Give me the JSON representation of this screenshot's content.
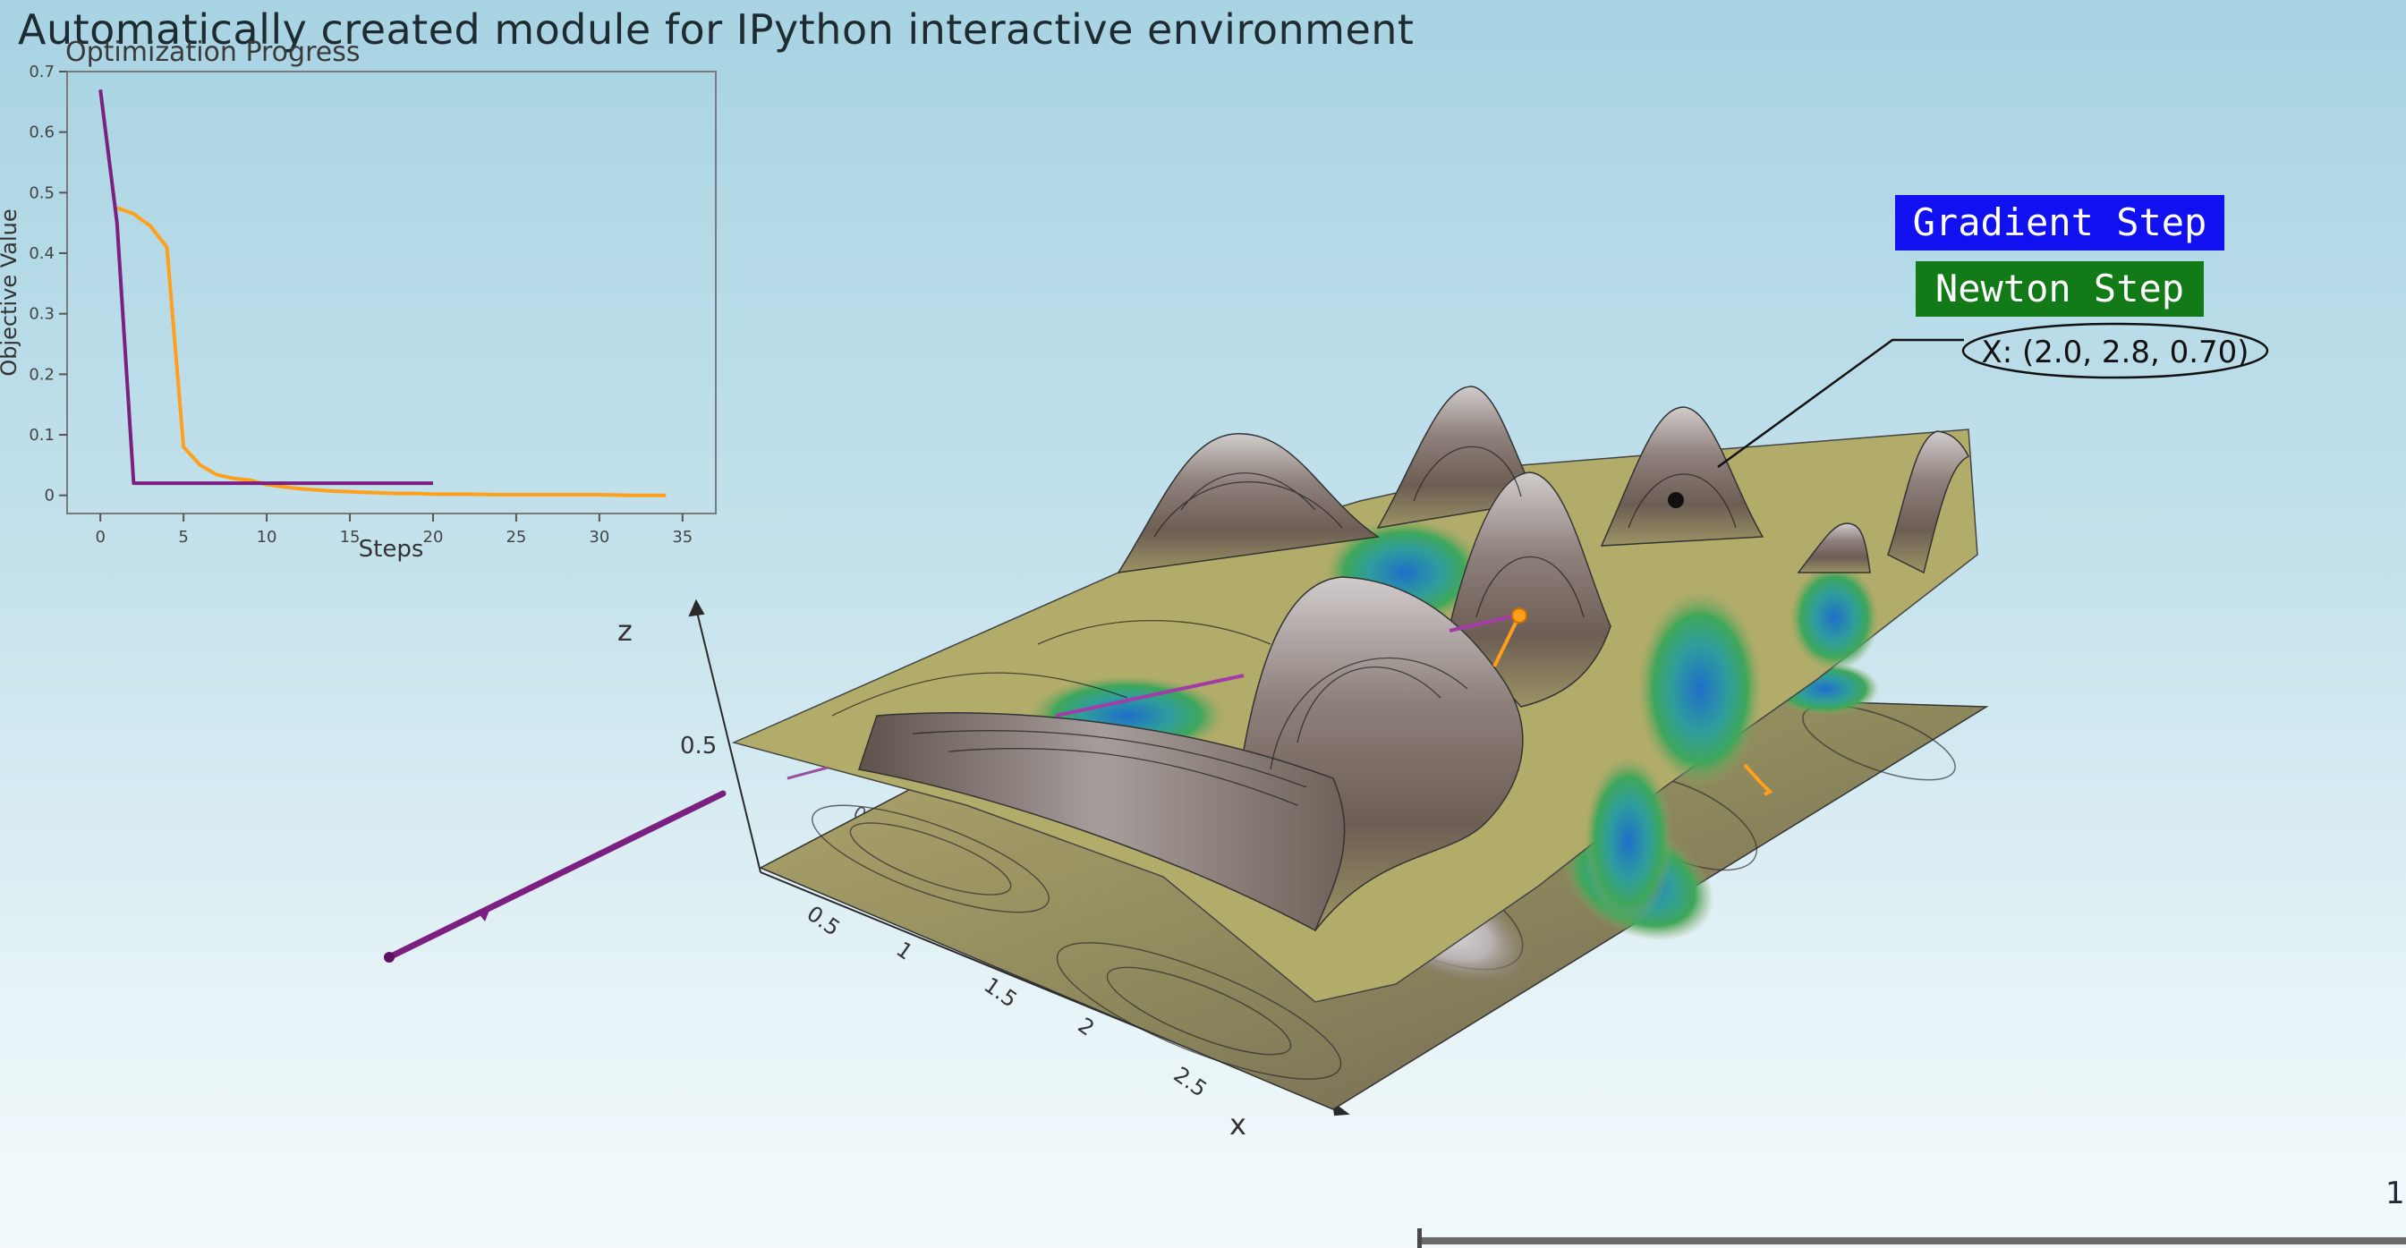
{
  "window": {
    "title": "Automatically created module for IPython interactive environment"
  },
  "colors": {
    "gradient": "#ff9f1a",
    "newton": "#7b1f80",
    "legend_gradient_bg": "#1010f0",
    "legend_newton_bg": "#127a16"
  },
  "chart_data": [
    {
      "type": "line",
      "title": "Optimization Progress",
      "xlabel": "Steps",
      "ylabel": "Objective Value",
      "xlim": [
        -2,
        37
      ],
      "ylim": [
        -0.03,
        0.7
      ],
      "xticks": [
        0,
        5,
        10,
        15,
        20,
        25,
        30,
        35
      ],
      "yticks": [
        0,
        0.1,
        0.2,
        0.3,
        0.4,
        0.5,
        0.6,
        0.7
      ],
      "grid": false,
      "series": [
        {
          "color": "#ff9f1a",
          "x": [
            1,
            2,
            3,
            4,
            5,
            6,
            7,
            8,
            9,
            10,
            11,
            12,
            13,
            14,
            15,
            16,
            17,
            18,
            19,
            20,
            22,
            24,
            26,
            28,
            30,
            32,
            34
          ],
          "y": [
            0.475,
            0.465,
            0.445,
            0.41,
            0.08,
            0.05,
            0.034,
            0.028,
            0.025,
            0.018,
            0.014,
            0.011,
            0.009,
            0.007,
            0.006,
            0.005,
            0.004,
            0.003,
            0.003,
            0.002,
            0.002,
            0.001,
            0.001,
            0.001,
            0.001,
            0.0,
            0.0
          ]
        },
        {
          "color": "#7b1f80",
          "x": [
            0,
            1,
            2,
            3,
            4,
            5,
            6,
            7,
            8,
            9,
            10,
            11,
            12,
            13,
            14,
            15,
            16,
            17,
            18,
            19,
            20
          ],
          "y": [
            0.67,
            0.45,
            0.02,
            0.02,
            0.02,
            0.02,
            0.02,
            0.02,
            0.02,
            0.02,
            0.02,
            0.02,
            0.02,
            0.02,
            0.02,
            0.02,
            0.02,
            0.02,
            0.02,
            0.02,
            0.02
          ]
        }
      ]
    },
    {
      "type": "surface",
      "axes": {
        "x_label": "x",
        "z_label": "z"
      },
      "x_ticks": [
        "0.5",
        "1",
        "1.5",
        "2",
        "2.5"
      ],
      "z_ticks": [
        "0.5"
      ],
      "y_tick_partial": "0.5",
      "annotation": "X: (2.0, 2.8, 0.70)",
      "legend": [
        "Gradient Step",
        "Newton Step"
      ]
    }
  ],
  "scale_bar": {
    "value": "1"
  }
}
